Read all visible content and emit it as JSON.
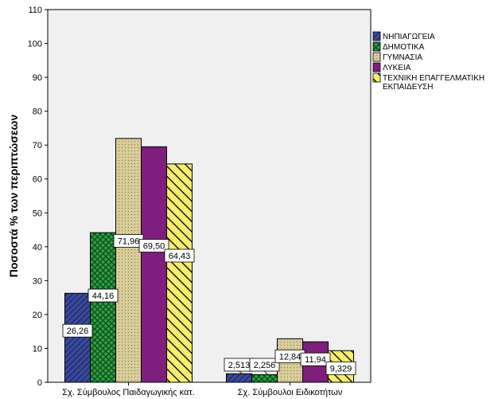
{
  "chart_data": {
    "type": "bar",
    "title": "",
    "xlabel": "",
    "ylabel": "Ποσοστά % των περιπτώσεων",
    "ylim": [
      0,
      110
    ],
    "yticks": [
      0,
      10,
      20,
      30,
      40,
      50,
      60,
      70,
      80,
      90,
      100,
      110
    ],
    "grid": false,
    "legend_position": "right",
    "plot_background": "#f0f0f0",
    "categories": [
      "Σχ. Σύμβουλος Παιδαγωγικής κατ.",
      "Σχ. Σύμβουλοι Ειδικοτήτων"
    ],
    "series": [
      {
        "name": "ΝΗΠΙΑΓΩΓΕΙΑ",
        "values": [
          26.26,
          2.513
        ],
        "labels": [
          "26,26",
          "2,513"
        ],
        "color": "#3b4a9c",
        "pattern": "diagonal-stripes"
      },
      {
        "name": "ΔΗΜΟΤΙΚΑ",
        "values": [
          44.16,
          2.256
        ],
        "labels": [
          "44,16",
          "2,256"
        ],
        "color": "#2e9e44",
        "pattern": "crosshatch"
      },
      {
        "name": "ΓΥΜΝΑΣΙΑ",
        "values": [
          71.96,
          12.84
        ],
        "labels": [
          "71,96",
          "12,84"
        ],
        "color": "#d8cc99",
        "pattern": "dots"
      },
      {
        "name": "ΛΥΚΕΙΑ",
        "values": [
          69.5,
          11.94
        ],
        "labels": [
          "69,50",
          "11,94"
        ],
        "color": "#7e1f7e",
        "pattern": "solid"
      },
      {
        "name": "ΤΕΧΝΙΚΗ ΕΠΑΓΓΕΛΜΑΤΙΚΗ ΕΚΠΑΙΔΕΥΣΗ",
        "values": [
          64.43,
          9.329
        ],
        "labels": [
          "64,43",
          "9,329"
        ],
        "color": "#f5ee6e",
        "pattern": "wide-diagonal"
      }
    ]
  }
}
